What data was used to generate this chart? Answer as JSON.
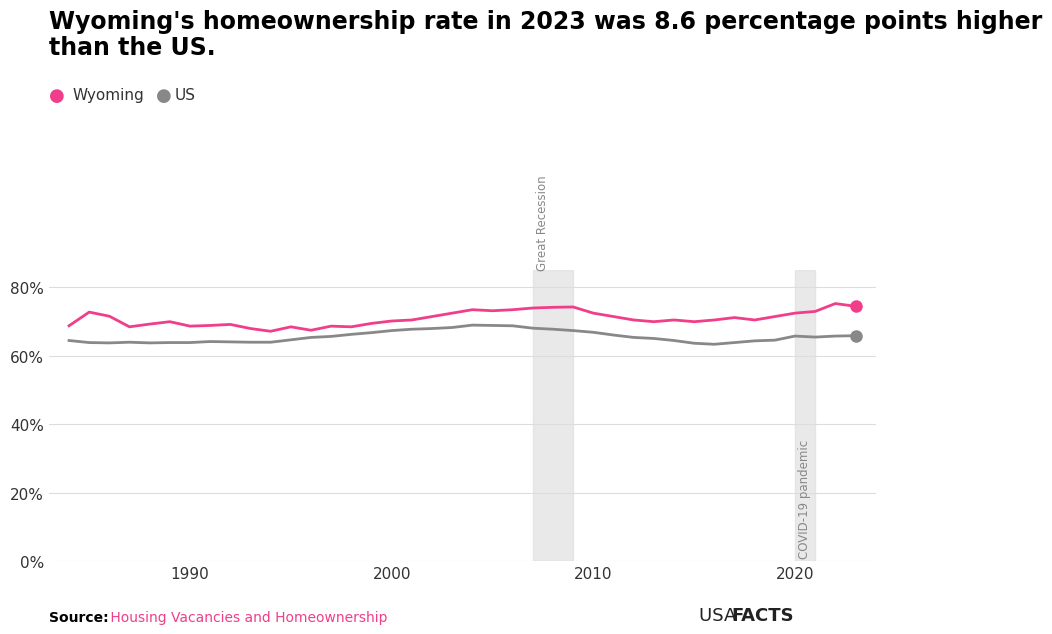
{
  "title_line1": "Wyoming's homeownership rate in 2023 was 8.6 percentage points higher",
  "title_line2": "than the US.",
  "wyoming_years": [
    1984,
    1985,
    1986,
    1987,
    1988,
    1989,
    1990,
    1991,
    1992,
    1993,
    1994,
    1995,
    1996,
    1997,
    1998,
    1999,
    2000,
    2001,
    2002,
    2003,
    2004,
    2005,
    2006,
    2007,
    2008,
    2009,
    2010,
    2011,
    2012,
    2013,
    2014,
    2015,
    2016,
    2017,
    2018,
    2019,
    2020,
    2021,
    2022,
    2023
  ],
  "wyoming_values": [
    68.8,
    72.8,
    71.6,
    68.5,
    69.3,
    70.0,
    68.7,
    68.9,
    69.2,
    68.0,
    67.2,
    68.5,
    67.5,
    68.7,
    68.5,
    69.5,
    70.2,
    70.5,
    71.5,
    72.5,
    73.5,
    73.2,
    73.5,
    74.0,
    74.2,
    74.3,
    72.5,
    71.5,
    70.5,
    70.0,
    70.5,
    70.0,
    70.5,
    71.2,
    70.5,
    71.5,
    72.5,
    73.0,
    75.3,
    74.5
  ],
  "us_years": [
    1984,
    1985,
    1986,
    1987,
    1988,
    1989,
    1990,
    1991,
    1992,
    1993,
    1994,
    1995,
    1996,
    1997,
    1998,
    1999,
    2000,
    2001,
    2002,
    2003,
    2004,
    2005,
    2006,
    2007,
    2008,
    2009,
    2010,
    2011,
    2012,
    2013,
    2014,
    2015,
    2016,
    2017,
    2018,
    2019,
    2020,
    2021,
    2022,
    2023
  ],
  "us_values": [
    64.5,
    63.9,
    63.8,
    64.0,
    63.8,
    63.9,
    63.9,
    64.2,
    64.1,
    64.0,
    64.0,
    64.7,
    65.4,
    65.7,
    66.3,
    66.8,
    67.4,
    67.8,
    68.0,
    68.3,
    69.0,
    68.9,
    68.8,
    68.1,
    67.8,
    67.4,
    66.9,
    66.1,
    65.4,
    65.1,
    64.5,
    63.7,
    63.4,
    63.9,
    64.4,
    64.6,
    65.8,
    65.5,
    65.8,
    65.9
  ],
  "wyoming_color": "#f03e8a",
  "us_color": "#888888",
  "recession_start": 2007,
  "recession_end": 2009,
  "covid_start": 2020,
  "covid_end": 2021,
  "recession_label": "Great Recession",
  "covid_label": "COVID-19 pandemic",
  "shade_color": "#e0e0e0",
  "shade_alpha": 0.7,
  "ylim": [
    0,
    85
  ],
  "yticks": [
    0,
    20,
    40,
    60,
    80
  ],
  "ytick_labels": [
    "0%",
    "20%",
    "40%",
    "60%",
    "80%"
  ],
  "xlim": [
    1983,
    2024
  ],
  "xticks": [
    1990,
    2000,
    2010,
    2020
  ],
  "background_color": "#ffffff",
  "grid_color": "#dddddd",
  "source_bold": "Source:",
  "source_text": " Housing Vacancies and Homeownership",
  "source_color": "#f03e8a",
  "legend_wyoming": "Wyoming",
  "legend_us": "US",
  "line_width": 2.0,
  "marker_size": 8,
  "title_fontsize": 17,
  "tick_fontsize": 11
}
